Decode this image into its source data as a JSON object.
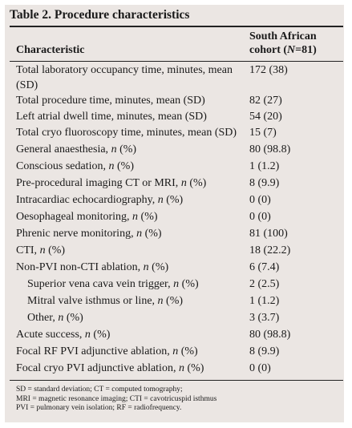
{
  "title": "Table 2. Procedure characteristics",
  "header": {
    "characteristic": "Characteristic",
    "cohort_line1": "South African",
    "cohort_line2_pre": "cohort (",
    "cohort_line2_n": "N",
    "cohort_line2_post": "=81)"
  },
  "rows": [
    {
      "label": "Total laboratory occupancy time, minutes, mean (SD)",
      "value": "172 (38)"
    },
    {
      "label": "Total procedure time, minutes, mean (SD)",
      "value": "82 (27)"
    },
    {
      "label": "Left atrial dwell time, minutes, mean (SD)",
      "value": "54 (20)"
    },
    {
      "label": "Total cryo fluoroscopy time, minutes, mean (SD)",
      "value": "15 (7)"
    },
    {
      "label": "General anaesthesia, n (%)",
      "value": "80 (98.8)"
    },
    {
      "label": "Conscious sedation, n (%)",
      "value": "1 (1.2)"
    },
    {
      "label": "Pre-procedural imaging CT or MRI, n (%)",
      "value": "8 (9.9)"
    },
    {
      "label": "Intracardiac echocardiography, n (%)",
      "value": "0 (0)"
    },
    {
      "label": "Oesophageal monitoring, n (%)",
      "value": "0 (0)"
    },
    {
      "label": "Phrenic nerve monitoring, n (%)",
      "value": "81 (100)"
    },
    {
      "label": "CTI, n (%)",
      "value": "18 (22.2)"
    },
    {
      "label": "Non-PVI non-CTI ablation, n (%)",
      "value": "6 (7.4)"
    },
    {
      "label": "Superior vena cava vein trigger, n (%)",
      "value": "2 (2.5)"
    },
    {
      "label": "Mitral valve isthmus or line, n (%)",
      "value": "1 (1.2)"
    },
    {
      "label": "Other, n (%)",
      "value": "3 (3.7)"
    },
    {
      "label": "Acute success, n (%)",
      "value": "80 (98.8)"
    },
    {
      "label": "Focal RF PVI adjunctive ablation, n (%)",
      "value": "8 (9.9)"
    },
    {
      "label": "Focal cryo PVI adjunctive ablation, n (%)",
      "value": "0 (0)"
    }
  ],
  "notes": [
    "SD = standard deviation; CT = computed tomography;",
    "MRI = magnetic resonance imaging; CTI = cavotricuspid isthmus",
    "PVI = pulmonary vein isolation; RF = radiofrequency."
  ]
}
